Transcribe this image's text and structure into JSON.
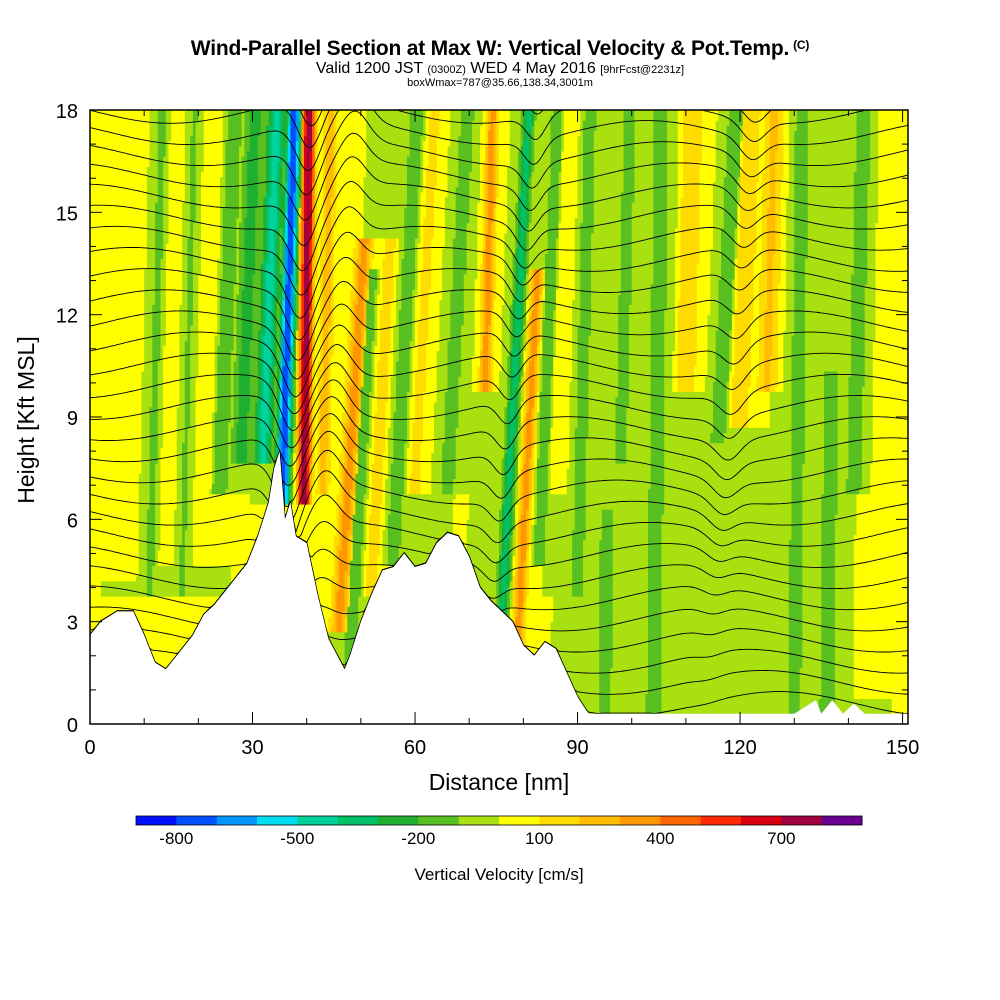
{
  "header": {
    "title": "Wind-Parallel Section at Max W: Vertical Velocity & Pot.Temp.",
    "copyright": "(C)",
    "valid_prefix": "Valid 1200 JST",
    "valid_utc": "(0300Z)",
    "valid_date": "WED 4 May 2016",
    "forecast": "[9hrFcst@2231z]",
    "box_info": "boxWmax=787@35.66,138.34,3001m"
  },
  "chart_data": {
    "type": "heatmap",
    "title": "Wind-Parallel Section at Max W: Vertical Velocity & Pot.Temp.",
    "xlabel": "Distance [nm]",
    "ylabel": "Height [Kft MSL]",
    "xlim": [
      0,
      151
    ],
    "ylim": [
      0,
      18
    ],
    "x_ticks": [
      0,
      30,
      60,
      90,
      120,
      150
    ],
    "x_tick_labels": [
      "0",
      "30",
      "60",
      "90",
      "120",
      "150"
    ],
    "y_ticks": [
      0,
      3,
      6,
      9,
      12,
      15,
      18
    ],
    "y_tick_labels": [
      "0",
      "3",
      "6",
      "9",
      "12",
      "15",
      "18"
    ],
    "background_w": 0,
    "terrain": [
      [
        0,
        2.6
      ],
      [
        2,
        3.0
      ],
      [
        5,
        3.3
      ],
      [
        8,
        3.3
      ],
      [
        10,
        2.6
      ],
      [
        12,
        1.8
      ],
      [
        14,
        1.6
      ],
      [
        16,
        2.0
      ],
      [
        19,
        2.6
      ],
      [
        21,
        3.2
      ],
      [
        23,
        3.5
      ],
      [
        25,
        3.9
      ],
      [
        27,
        4.3
      ],
      [
        29,
        4.7
      ],
      [
        31,
        5.5
      ],
      [
        33,
        6.5
      ],
      [
        34,
        7.5
      ],
      [
        35,
        8.0
      ],
      [
        36,
        6.0
      ],
      [
        37,
        6.5
      ],
      [
        38,
        5.5
      ],
      [
        40,
        5.3
      ],
      [
        42,
        3.8
      ],
      [
        44,
        2.5
      ],
      [
        46,
        1.9
      ],
      [
        47,
        1.6
      ],
      [
        48,
        2.0
      ],
      [
        50,
        3.0
      ],
      [
        52,
        3.8
      ],
      [
        54,
        4.5
      ],
      [
        56,
        4.6
      ],
      [
        58,
        5.0
      ],
      [
        60,
        4.6
      ],
      [
        62,
        4.7
      ],
      [
        64,
        5.3
      ],
      [
        66,
        5.6
      ],
      [
        68,
        5.5
      ],
      [
        70,
        4.9
      ],
      [
        72,
        4.0
      ],
      [
        74,
        3.6
      ],
      [
        76,
        3.3
      ],
      [
        78,
        3.0
      ],
      [
        80,
        2.3
      ],
      [
        82,
        2.0
      ],
      [
        84,
        2.4
      ],
      [
        86,
        2.2
      ],
      [
        88,
        1.5
      ],
      [
        90,
        0.8
      ],
      [
        92,
        0.3
      ],
      [
        100,
        0.3
      ],
      [
        110,
        0.3
      ],
      [
        120,
        0.3
      ],
      [
        130,
        0.3
      ],
      [
        134,
        0.7
      ],
      [
        135,
        0.3
      ],
      [
        137,
        0.7
      ],
      [
        139,
        0.3
      ],
      [
        141,
        0.6
      ],
      [
        143,
        0.3
      ],
      [
        151,
        0.3
      ]
    ],
    "w_features": [
      {
        "x": 6,
        "w": 2.0,
        "z0": 4.5,
        "z1": 18,
        "tilt": 1.0,
        "v": 80
      },
      {
        "x": 11,
        "w": 1.5,
        "z0": 4.0,
        "z1": 18,
        "tilt": 1.0,
        "v": -120
      },
      {
        "x": 14,
        "w": 2.0,
        "z0": 5.0,
        "z1": 18,
        "tilt": 1.0,
        "v": 60
      },
      {
        "x": 17,
        "w": 1.5,
        "z0": 4.0,
        "z1": 18,
        "tilt": 1.0,
        "v": -110
      },
      {
        "x": 21,
        "w": 2.0,
        "z0": 5.0,
        "z1": 18,
        "tilt": 1.0,
        "v": 90
      },
      {
        "x": 24,
        "w": 2.0,
        "z0": 7.0,
        "z1": 18,
        "tilt": 1.5,
        "v": -150
      },
      {
        "x": 28,
        "w": 2.0,
        "z0": 8.0,
        "z1": 18,
        "tilt": 1.5,
        "v": -250
      },
      {
        "x": 32,
        "w": 1.8,
        "z0": 8.0,
        "z1": 18,
        "tilt": 1.5,
        "v": -450
      },
      {
        "x": 35.5,
        "w": 1.3,
        "z0": 6.8,
        "z1": 18,
        "tilt": 1.2,
        "v": -800
      },
      {
        "x": 39.5,
        "w": 1.2,
        "z0": 6.8,
        "z1": 18,
        "tilt": 0.5,
        "v": 787
      },
      {
        "x": 43,
        "w": 1.3,
        "z0": 7.0,
        "z1": 18,
        "tilt": 0.8,
        "v": 250
      },
      {
        "x": 46,
        "w": 1.6,
        "z0": 3.0,
        "z1": 14,
        "tilt": 2.5,
        "v": 350
      },
      {
        "x": 48,
        "w": 1.5,
        "z0": 2.0,
        "z1": 13,
        "tilt": 2.0,
        "v": -180
      },
      {
        "x": 52,
        "w": 1.5,
        "z0": 4.0,
        "z1": 14,
        "tilt": 2.0,
        "v": 150
      },
      {
        "x": 56,
        "w": 1.8,
        "z0": 5.0,
        "z1": 18,
        "tilt": 2.0,
        "v": -150
      },
      {
        "x": 60,
        "w": 2.0,
        "z0": 7.0,
        "z1": 18,
        "tilt": 2.0,
        "v": 120
      },
      {
        "x": 66,
        "w": 2.0,
        "z0": 7.0,
        "z1": 18,
        "tilt": 2.0,
        "v": -140
      },
      {
        "x": 73,
        "w": 1.2,
        "z0": 10.0,
        "z1": 18,
        "tilt": 1.0,
        "v": 350
      },
      {
        "x": 76,
        "w": 1.2,
        "z0": 3.0,
        "z1": 18,
        "tilt": 2.0,
        "v": -350
      },
      {
        "x": 79,
        "w": 1.2,
        "z0": 2.5,
        "z1": 13,
        "tilt": 2.0,
        "v": 350
      },
      {
        "x": 83,
        "w": 1.5,
        "z0": 5.0,
        "z1": 18,
        "tilt": 1.5,
        "v": -150
      },
      {
        "x": 86,
        "w": 2.0,
        "z0": 7.0,
        "z1": 18,
        "tilt": 1.5,
        "v": 100
      },
      {
        "x": 90,
        "w": 2.0,
        "z0": 4.0,
        "z1": 18,
        "tilt": 1.0,
        "v": -130
      },
      {
        "x": 95,
        "w": 2.0,
        "z0": 0.5,
        "z1": 6,
        "tilt": 0.5,
        "v": -140
      },
      {
        "x": 98,
        "w": 2.0,
        "z0": 8.0,
        "z1": 18,
        "tilt": 1.0,
        "v": -130
      },
      {
        "x": 104,
        "w": 3.0,
        "z0": 0.5,
        "z1": 18,
        "tilt": 0.5,
        "v": -120
      },
      {
        "x": 110,
        "w": 2.0,
        "z0": 10.0,
        "z1": 18,
        "tilt": 1.0,
        "v": 200
      },
      {
        "x": 116,
        "w": 1.5,
        "z0": 8.5,
        "z1": 18,
        "tilt": 2.0,
        "v": -200
      },
      {
        "x": 120,
        "w": 2.0,
        "z0": 9.0,
        "z1": 18,
        "tilt": 1.5,
        "v": 180
      },
      {
        "x": 125,
        "w": 2.0,
        "z0": 10.0,
        "z1": 18,
        "tilt": 1.0,
        "v": 220
      },
      {
        "x": 130,
        "w": 2.0,
        "z0": 0.5,
        "z1": 18,
        "tilt": 0.5,
        "v": -140
      },
      {
        "x": 136,
        "w": 2.0,
        "z0": 0.5,
        "z1": 10,
        "tilt": 0.5,
        "v": -150
      },
      {
        "x": 141,
        "w": 2.0,
        "z0": 7.0,
        "z1": 18,
        "tilt": 1.0,
        "v": -150
      },
      {
        "x": 146,
        "w": 2.5,
        "z0": 1.0,
        "z1": 18,
        "tilt": 0.5,
        "v": 30
      }
    ],
    "colorbar": {
      "label": "Vertical Velocity [cm/s]",
      "tick_values": [
        -800,
        -500,
        -200,
        100,
        400,
        700
      ],
      "tick_labels": [
        "-800",
        "-500",
        "-200",
        "100",
        "400",
        "700"
      ],
      "colors": [
        "#0010ff",
        "#0050ff",
        "#0098ff",
        "#00dcf0",
        "#00d29a",
        "#00c068",
        "#20b030",
        "#58c020",
        "#a8e010",
        "#ffff00",
        "#ffdc00",
        "#ffbc00",
        "#ff9800",
        "#ff6600",
        "#ff2800",
        "#d80010",
        "#a00040",
        "#6a0090"
      ]
    }
  }
}
